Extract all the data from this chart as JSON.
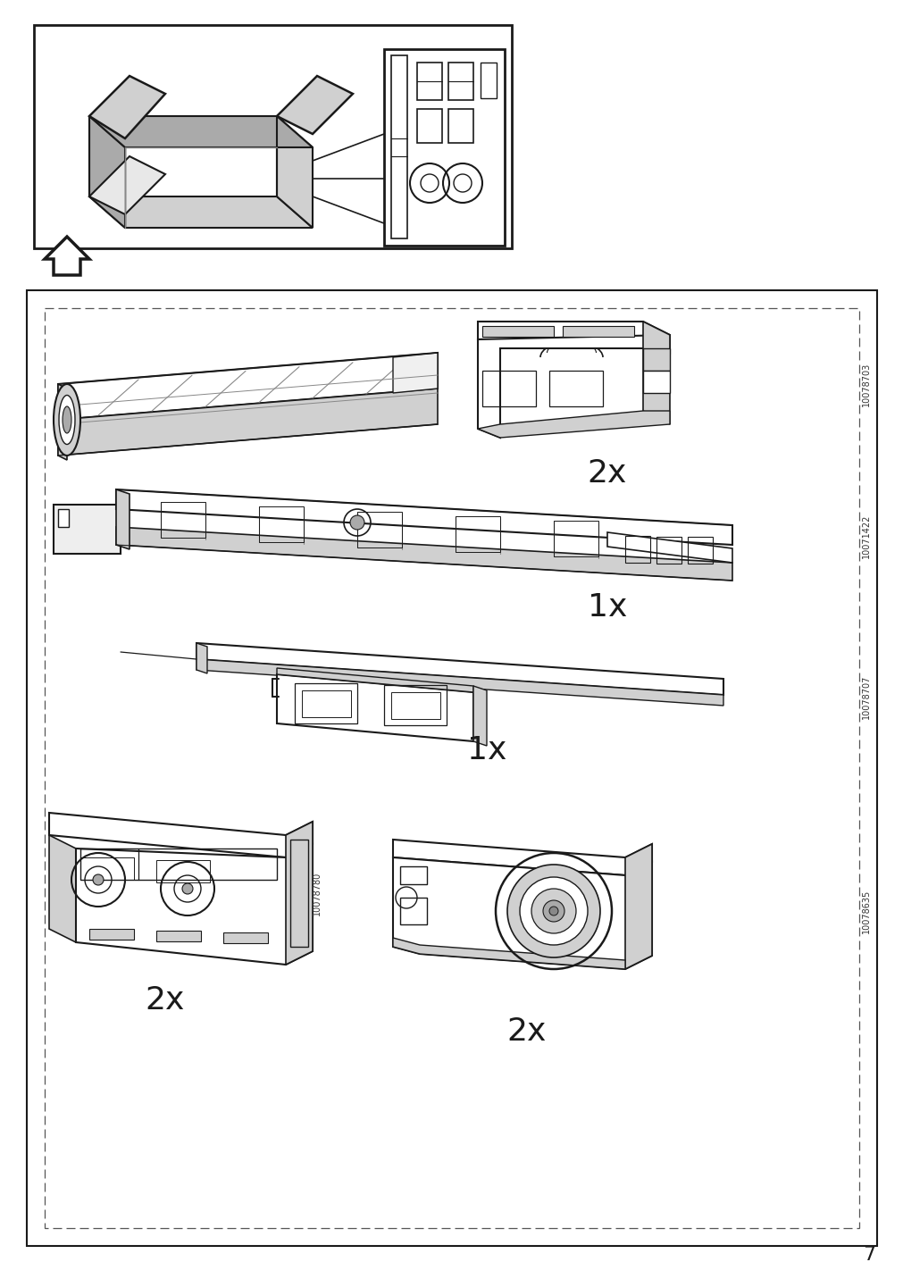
{
  "page_number": "7",
  "bg": "#ffffff",
  "lc": "#1a1a1a",
  "gray1": "#d0d0d0",
  "gray2": "#aaaaaa",
  "gray3": "#888888",
  "part_ids": [
    "10078703",
    "10071422",
    "10078707",
    "10078780",
    "10078635"
  ],
  "quantities": [
    "2x",
    "1x",
    "1x",
    "2x",
    "2x"
  ],
  "figsize": [
    10.12,
    14.32
  ],
  "dpi": 100
}
